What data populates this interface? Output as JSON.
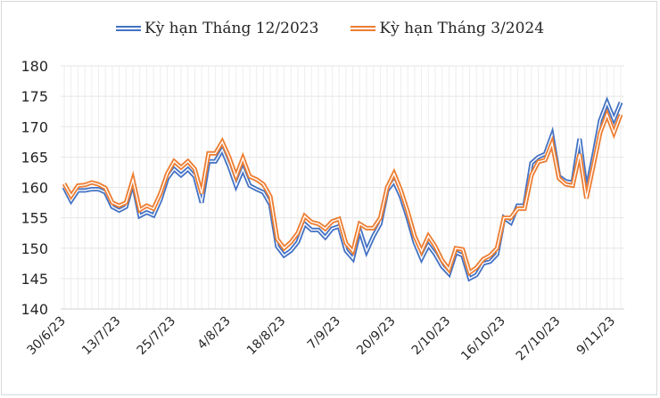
{
  "chart_data": {
    "type": "line",
    "title": "",
    "xlabel": "",
    "ylabel": "",
    "ylim": [
      140,
      180
    ],
    "yticks": [
      140,
      145,
      150,
      155,
      160,
      165,
      170,
      175,
      180
    ],
    "grid": true,
    "legend_position": "top",
    "x_tick_labels": [
      "30/6/23",
      "13/7/23",
      "25/7/23",
      "4/8/23",
      "18/8/23",
      "7/9/23",
      "20/9/23",
      "2/10/23",
      "16/10/23",
      "27/10/23",
      "9/11/23"
    ],
    "x_tick_indices": [
      0,
      8,
      16,
      24,
      32,
      40,
      48,
      56,
      64,
      72,
      80
    ],
    "series": [
      {
        "name": "Kỳ hạn Tháng 12/2023",
        "color": "#4472c4",
        "values": [
          160.0,
          157.8,
          159.5,
          159.5,
          159.7,
          159.7,
          159.2,
          156.8,
          156.2,
          156.8,
          160.8,
          155.3,
          155.9,
          155.4,
          158.0,
          161.5,
          163.0,
          162.0,
          163.0,
          161.8,
          157.5,
          164.3,
          164.3,
          166.2,
          163.5,
          160.3,
          163.0,
          160.3,
          159.7,
          159.2,
          157.2,
          150.3,
          148.8,
          149.6,
          151.0,
          154.0,
          153.0,
          153.0,
          151.8,
          153.2,
          153.6,
          149.6,
          148.3,
          153.0,
          149.5,
          152.0,
          154.0,
          159.5,
          161.0,
          158.5,
          155.0,
          151.0,
          148.3,
          150.5,
          149.0,
          147.0,
          145.8,
          149.3,
          148.8,
          145.0,
          145.6,
          147.5,
          147.8,
          149.0,
          155.0,
          154.2,
          157.0,
          157.0,
          164.0,
          165.0,
          165.5,
          168.6,
          161.8,
          161.0,
          160.8,
          168.0,
          159.5,
          165.0,
          171.0,
          174.0,
          171.2,
          174.0
        ]
      },
      {
        "name": "Kỳ hạn Tháng 3/2024",
        "color": "#ed7d31",
        "values": [
          160.6,
          158.6,
          160.3,
          160.4,
          160.8,
          160.5,
          159.9,
          157.5,
          157.0,
          157.5,
          161.3,
          156.3,
          157.0,
          156.5,
          159.0,
          162.3,
          164.3,
          163.3,
          164.3,
          163.0,
          159.0,
          165.6,
          165.6,
          167.5,
          165.0,
          161.8,
          164.8,
          161.8,
          161.3,
          160.5,
          158.5,
          151.5,
          150.0,
          151.0,
          152.5,
          155.3,
          154.3,
          154.0,
          153.2,
          154.4,
          154.8,
          150.8,
          149.5,
          154.0,
          153.3,
          153.3,
          155.0,
          160.0,
          162.3,
          159.5,
          156.0,
          152.0,
          149.5,
          152.0,
          150.3,
          148.0,
          146.5,
          150.0,
          149.8,
          146.0,
          146.8,
          148.2,
          148.8,
          150.0,
          155.0,
          155.0,
          156.5,
          156.5,
          162.0,
          164.2,
          164.5,
          167.3,
          161.5,
          160.5,
          160.3,
          165.5,
          158.2,
          163.5,
          169.0,
          172.0,
          169.0,
          172.0
        ]
      }
    ]
  },
  "legend": {
    "items": [
      {
        "label": "Kỳ hạn Tháng 12/2023",
        "color": "#4472c4"
      },
      {
        "label": "Kỳ hạn Tháng 3/2024",
        "color": "#ed7d31"
      }
    ]
  }
}
